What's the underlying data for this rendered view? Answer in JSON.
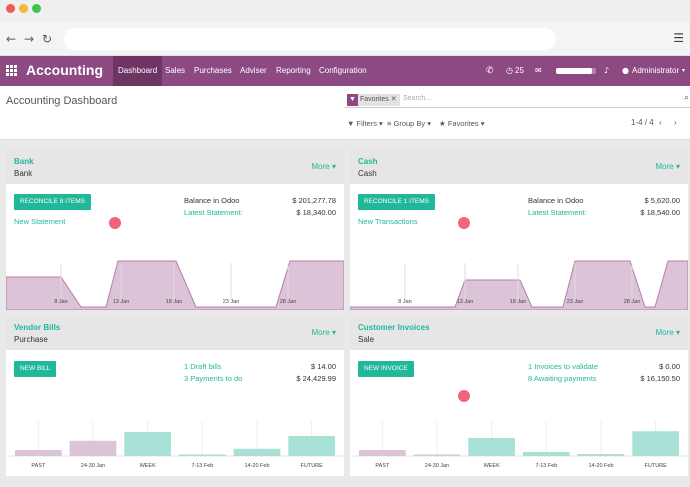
{
  "window": {
    "traffic_colors": [
      "#ee5b57",
      "#f4b63f",
      "#40c44e"
    ]
  },
  "browser": {
    "back": "←",
    "forward": "→",
    "reload": "↻",
    "menu": "☰"
  },
  "nav": {
    "brand": "Accounting",
    "items": [
      "Dashboard",
      "Sales",
      "Purchases",
      "Adviser",
      "Reporting",
      "Configuration"
    ],
    "active": "Dashboard",
    "messages_count": "25",
    "user": "Administrator",
    "progress": 0.9
  },
  "control_panel": {
    "title": "Accounting Dashboard",
    "facet": "Favorites",
    "search_placeholder": "Search...",
    "filters": "Filters",
    "group_by": "Group By",
    "favorites": "Favorites",
    "pager": "1-4 / 4"
  },
  "cards": {
    "bank": {
      "title": "Bank",
      "subtitle": "Bank",
      "more": "More",
      "button": "RECONCILE 8 ITEMS",
      "link": "New Statement",
      "line1_label": "Balance in Odoo",
      "line1_value": "$ 201,277.78",
      "line2_label": "Latest Statement:",
      "line2_value": "$ 18,340.00",
      "chart": {
        "type": "area",
        "labels": [
          "8 Jan",
          "13 Jan",
          "18 Jan",
          "23 Jan",
          "28 Jan"
        ]
      }
    },
    "cash": {
      "title": "Cash",
      "subtitle": "Cash",
      "more": "More",
      "button": "RECONCILE 1 ITEMS",
      "link": "New Transactions",
      "line1_label": "Balance in Odoo",
      "line1_value": "$ 5,620.00",
      "line2_label": "Latest Statement:",
      "line2_value": "$ 18,540.00",
      "chart": {
        "type": "area",
        "labels": [
          "8 Jan",
          "13 Jan",
          "18 Jan",
          "23 Jan",
          "28 Jan"
        ]
      }
    },
    "vendor": {
      "title": "Vendor Bills",
      "subtitle": "Purchase",
      "more": "More",
      "button": "NEW BILL",
      "line1_label": "1 Draft bills",
      "line1_value": "$ 14.00",
      "line2_label": "3 Payments to do",
      "line2_value": "$ 24,429.99",
      "chart": {
        "type": "bar",
        "labels": [
          "PAST",
          "24-30 Jan",
          "WEEK",
          "7-13 Feb",
          "14-20 Feb",
          "FUTURE"
        ],
        "values": [
          0.15,
          0.38,
          0.6,
          0,
          0.18,
          0.5
        ],
        "colors": [
          "#dcc3d8",
          "#dcc3d8",
          "#a8e2d6",
          "#a8e2d6",
          "#a8e2d6",
          "#a8e2d6"
        ]
      }
    },
    "invoices": {
      "title": "Customer Invoices",
      "subtitle": "Sale",
      "more": "More",
      "button": "NEW INVOICE",
      "line1_label": "1 Invoices to validate",
      "line1_value": "$ 0.00",
      "line2_label": "8 Awaiting payments",
      "line2_value": "$ 16,150.50",
      "chart": {
        "type": "bar",
        "labels": [
          "PAST",
          "24-30 Jan",
          "WEEK",
          "7-13 Feb",
          "14-20 Feb",
          "FUTURE"
        ],
        "values": [
          0.15,
          0.02,
          0.45,
          0.1,
          0.05,
          0.62
        ],
        "colors": [
          "#dcc3d8",
          "#dcc3d8",
          "#a8e2d6",
          "#a8e2d6",
          "#a8e2d6",
          "#a8e2d6"
        ]
      }
    }
  }
}
